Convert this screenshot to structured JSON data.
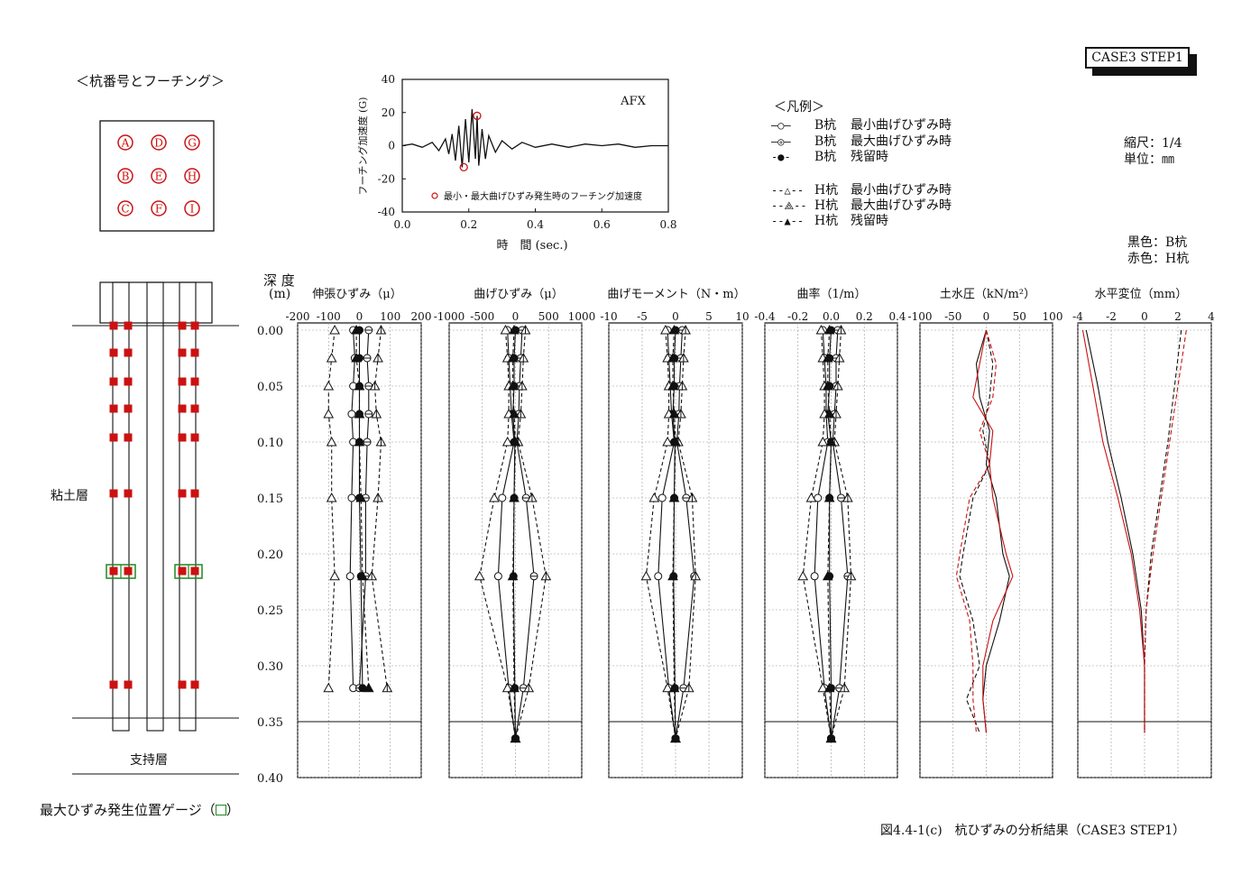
{
  "header": {
    "case_label": "CASE3 STEP1",
    "pile_section_title": "＜杭番号とフーチング＞",
    "scale_label": "縮尺：1/4",
    "unit_label": "単位：㎜",
    "color_black": "黒色：B杭",
    "color_red": "赤色：H杭",
    "caption": "図4.4-1(c)　杭ひずみの分析結果（CASE3 STEP1）",
    "max_gauge_note": "最大ひずみ発生位置ゲージ（",
    "max_gauge_close": "）",
    "clay_layer": "粘土層",
    "bearing_layer": "支持層",
    "depth_label": "深 度",
    "depth_unit": "(m)"
  },
  "pile_layout": {
    "labels": [
      [
        "A",
        "D",
        "G"
      ],
      [
        "B",
        "E",
        "H"
      ],
      [
        "C",
        "F",
        "I"
      ]
    ]
  },
  "legend": {
    "title": "＜凡例＞",
    "items": [
      {
        "symbol": "—○—",
        "pile": "B杭",
        "desc": "最小曲げひずみ時"
      },
      {
        "symbol": "—◎—",
        "pile": "B杭",
        "desc": "最大曲げひずみ時"
      },
      {
        "symbol": "-●-",
        "pile": "B杭",
        "desc": "残留時"
      },
      {
        "symbol": "--△--",
        "pile": "H杭",
        "desc": "最小曲げひずみ時"
      },
      {
        "symbol": "--⟁--",
        "pile": "H杭",
        "desc": "最大曲げひずみ時"
      },
      {
        "symbol": "--▲--",
        "pile": "H杭",
        "desc": "残留時"
      }
    ]
  },
  "colors": {
    "black": "#111111",
    "red": "#cc1111",
    "gauge": "#1f8a1f"
  },
  "chart_data": [
    {
      "type": "line",
      "title": "AFX",
      "xlabel": "時　間 (sec.)",
      "ylabel": "フーチング加速度 (G)",
      "xlim": [
        0.0,
        0.8
      ],
      "ylim": [
        -40,
        40
      ],
      "x_ticks": [
        "0.0",
        "0.2",
        "0.4",
        "0.6",
        "0.8"
      ],
      "y_ticks": [
        "40",
        "20",
        "0",
        "-20",
        "-40"
      ],
      "annotation": "最小・最大曲げひずみ発生時のフーチング加速度",
      "marked_points": [
        {
          "x": 0.185,
          "y": -13
        },
        {
          "x": 0.225,
          "y": 18
        }
      ],
      "series": [
        {
          "values_t": [
            0.0,
            0.03,
            0.06,
            0.09,
            0.11,
            0.13,
            0.14,
            0.15,
            0.16,
            0.17,
            0.18,
            0.19,
            0.2,
            0.21,
            0.22,
            0.225,
            0.23,
            0.24,
            0.25,
            0.26,
            0.28,
            0.3,
            0.33,
            0.36,
            0.4,
            0.45,
            0.5,
            0.55,
            0.6,
            0.65,
            0.7,
            0.75,
            0.8
          ],
          "values": [
            0,
            1,
            -1,
            2,
            -3,
            4,
            -5,
            7,
            -9,
            12,
            -13,
            16,
            -10,
            22,
            -8,
            18,
            -12,
            10,
            -8,
            6,
            -4,
            3,
            -2,
            2,
            -1,
            1,
            -1,
            1,
            0,
            1,
            -1,
            0,
            0
          ]
        }
      ]
    },
    {
      "type": "line",
      "title": "伸張ひずみ（μ）",
      "xlim": [
        -200,
        200
      ],
      "x_ticks": [
        "-200",
        "-100",
        "0",
        "100",
        "200"
      ],
      "depths": [
        0.0,
        0.025,
        0.05,
        0.075,
        0.1,
        0.15,
        0.22,
        0.32,
        0.365
      ],
      "series": [
        {
          "name": "B杭 最小曲げひずみ時",
          "values": [
            -20,
            -15,
            -20,
            -25,
            -20,
            -25,
            -30,
            -20,
            null
          ]
        },
        {
          "name": "B杭 最大曲げひずみ時",
          "values": [
            30,
            25,
            30,
            30,
            25,
            20,
            20,
            0,
            null
          ]
        },
        {
          "name": "B杭 残留時",
          "values": [
            0,
            0,
            0,
            0,
            0,
            0,
            5,
            10,
            null
          ]
        },
        {
          "name": "H杭 最小曲げひずみ時",
          "values": [
            -80,
            -90,
            -100,
            -100,
            -90,
            -90,
            -80,
            -100,
            null
          ]
        },
        {
          "name": "H杭 最大曲げひずみ時",
          "values": [
            70,
            60,
            50,
            55,
            70,
            60,
            40,
            90,
            null
          ]
        },
        {
          "name": "H杭 残留時",
          "values": [
            -10,
            -10,
            0,
            0,
            0,
            5,
            10,
            30,
            null
          ]
        }
      ]
    },
    {
      "type": "line",
      "title": "曲げひずみ（μ）",
      "xlim": [
        -1000,
        1000
      ],
      "x_ticks": [
        "-1000",
        "-500",
        "0",
        "500",
        "1000"
      ],
      "depths": [
        0.0,
        0.025,
        0.05,
        0.075,
        0.1,
        0.15,
        0.22,
        0.32,
        0.365
      ],
      "series": [
        {
          "name": "B杭 最小曲げひずみ時",
          "values": [
            -120,
            -100,
            -80,
            -60,
            -20,
            -200,
            -260,
            -100,
            0
          ]
        },
        {
          "name": "B杭 最大曲げひずみ時",
          "values": [
            100,
            80,
            60,
            50,
            20,
            160,
            280,
            120,
            0
          ]
        },
        {
          "name": "B杭 残留時",
          "values": [
            0,
            -20,
            -20,
            -40,
            -10,
            -20,
            -30,
            -10,
            0
          ]
        },
        {
          "name": "H杭 最小曲げひずみ時",
          "values": [
            -150,
            -120,
            -100,
            -100,
            -120,
            -320,
            -540,
            -120,
            0
          ]
        },
        {
          "name": "H杭 最大曲げひずみ時",
          "values": [
            150,
            120,
            100,
            80,
            40,
            250,
            460,
            200,
            0
          ]
        },
        {
          "name": "H杭 残留時",
          "values": [
            -20,
            -40,
            -40,
            -20,
            0,
            -20,
            -40,
            -20,
            0
          ]
        }
      ]
    },
    {
      "type": "line",
      "title": "曲げモーメント（N・m）",
      "xlim": [
        -10,
        10
      ],
      "x_ticks": [
        "-10",
        "-5",
        "0",
        "5",
        "10"
      ],
      "depths": [
        0.0,
        0.025,
        0.05,
        0.075,
        0.1,
        0.15,
        0.22,
        0.32,
        0.365
      ],
      "series": [
        {
          "name": "B杭 最小曲げひずみ時",
          "values": [
            -1.2,
            -1,
            -0.8,
            -0.6,
            -0.2,
            -2,
            -2.6,
            -1,
            0
          ]
        },
        {
          "name": "B杭 最大曲げひずみ時",
          "values": [
            1,
            0.8,
            0.6,
            0.5,
            0.2,
            1.6,
            2.8,
            1.2,
            0
          ]
        },
        {
          "name": "B杭 残留時",
          "values": [
            0,
            -0.2,
            -0.2,
            -0.4,
            -0.1,
            -0.2,
            -0.3,
            -0.1,
            0
          ]
        },
        {
          "name": "H杭 最小曲げひずみ時",
          "values": [
            -1.5,
            -1.2,
            -1,
            -1,
            -1.2,
            -3.2,
            -4.4,
            -1.2,
            0
          ]
        },
        {
          "name": "H杭 最大曲げひずみ時",
          "values": [
            1.5,
            1.2,
            1,
            0.8,
            0.4,
            2.5,
            3,
            2,
            0
          ]
        },
        {
          "name": "H杭 残留時",
          "values": [
            -0.2,
            -0.4,
            -0.4,
            -0.2,
            0,
            -0.2,
            -0.4,
            -0.2,
            0
          ]
        }
      ]
    },
    {
      "type": "line",
      "title": "曲率（1/m）",
      "xlim": [
        -0.4,
        0.4
      ],
      "x_ticks": [
        "-0.4",
        "-0.2",
        "0.0",
        "0.2",
        "0.4"
      ],
      "depths": [
        0.0,
        0.025,
        0.05,
        0.075,
        0.1,
        0.15,
        0.22,
        0.32,
        0.365
      ],
      "series": [
        {
          "name": "B杭 最小曲げひずみ時",
          "values": [
            -0.05,
            -0.04,
            -0.03,
            -0.03,
            -0.02,
            -0.08,
            -0.1,
            -0.04,
            0
          ]
        },
        {
          "name": "B杭 最大曲げひずみ時",
          "values": [
            0.04,
            0.03,
            0.03,
            0.02,
            0.01,
            0.06,
            0.1,
            0.05,
            0
          ]
        },
        {
          "name": "B杭 残留時",
          "values": [
            0,
            -0.01,
            -0.01,
            -0.02,
            0,
            -0.01,
            -0.01,
            0,
            0
          ]
        },
        {
          "name": "H杭 最小曲げひずみ時",
          "values": [
            -0.06,
            -0.05,
            -0.04,
            -0.04,
            -0.05,
            -0.12,
            -0.17,
            -0.05,
            0
          ]
        },
        {
          "name": "H杭 最大曲げひずみ時",
          "values": [
            0.06,
            0.05,
            0.04,
            0.03,
            0.02,
            0.1,
            0.12,
            0.08,
            0
          ]
        },
        {
          "name": "H杭 残留時",
          "values": [
            -0.01,
            -0.02,
            -0.02,
            -0.01,
            0,
            -0.01,
            -0.02,
            -0.01,
            0
          ]
        }
      ]
    },
    {
      "type": "line",
      "title": "土水圧（kN/m²）",
      "xlim": [
        -100,
        100
      ],
      "x_ticks": [
        "-100",
        "-50",
        "0",
        "50",
        "100"
      ],
      "depths": [
        0.0,
        0.03,
        0.06,
        0.09,
        0.12,
        0.15,
        0.2,
        0.22,
        0.26,
        0.3,
        0.33,
        0.36
      ],
      "series": [
        {
          "name": "B杭 最大 (黒)",
          "values": [
            0,
            -15,
            -10,
            5,
            0,
            15,
            25,
            35,
            20,
            0,
            -5,
            0
          ]
        },
        {
          "name": "H杭 最大 (赤)",
          "values": [
            0,
            -10,
            -20,
            10,
            5,
            10,
            30,
            40,
            10,
            -5,
            -5,
            0
          ]
        },
        {
          "name": "B杭 最小 (黒 破線)",
          "values": [
            0,
            10,
            5,
            -5,
            5,
            -20,
            -35,
            -40,
            -20,
            -10,
            -30,
            -10
          ]
        },
        {
          "name": "H杭 最小 (赤 破線)",
          "values": [
            0,
            15,
            10,
            -10,
            5,
            -25,
            -40,
            -45,
            -25,
            -20,
            -20,
            -15
          ]
        }
      ]
    },
    {
      "type": "line",
      "title": "水平変位（mm）",
      "xlim": [
        -4,
        4
      ],
      "x_ticks": [
        "-4",
        "-2",
        "0",
        "2",
        "4"
      ],
      "depths": [
        0.0,
        0.05,
        0.1,
        0.15,
        0.2,
        0.25,
        0.3,
        0.36
      ],
      "series": [
        {
          "name": "B杭 最小 (黒)",
          "values": [
            -3.5,
            -2.8,
            -2.2,
            -1.4,
            -0.7,
            -0.2,
            0,
            0
          ]
        },
        {
          "name": "H杭 最小 (赤)",
          "values": [
            -3.7,
            -3.1,
            -2.5,
            -1.6,
            -0.8,
            -0.3,
            0,
            0
          ]
        },
        {
          "name": "B杭 最大 (黒 破線)",
          "values": [
            2.2,
            1.8,
            1.4,
            0.9,
            0.4,
            0.1,
            0,
            0
          ]
        },
        {
          "name": "H杭 最大 (赤 破線)",
          "values": [
            2.5,
            2.0,
            1.5,
            1.0,
            0.5,
            0.1,
            0,
            0
          ]
        }
      ]
    }
  ],
  "depth_axis": {
    "ticks": [
      "0.00",
      "0.05",
      "0.10",
      "0.15",
      "0.20",
      "0.25",
      "0.30",
      "0.35",
      "0.40"
    ],
    "range": [
      0.0,
      0.4
    ]
  }
}
